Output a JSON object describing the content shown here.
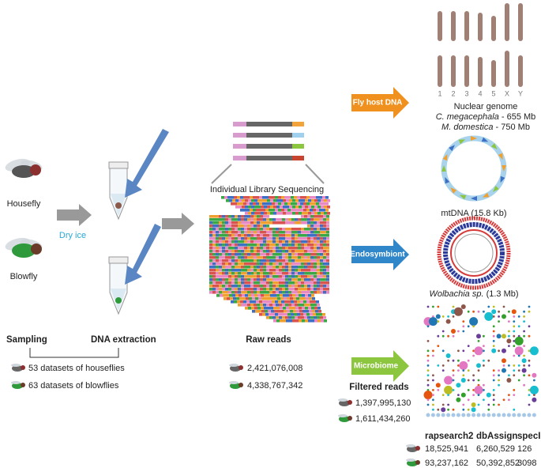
{
  "sampling": {
    "housefly": "Housefly",
    "blowfly": "Blowfly",
    "dry_ice": "Dry ice"
  },
  "sequencing": {
    "title": "Individual Library Sequencing"
  },
  "steps": {
    "sampling": "Sampling",
    "extraction": "DNA extraction",
    "raw_reads": "Raw reads"
  },
  "datasets": {
    "houseflies": "53 datasets of houseflies",
    "blowflies": "63 datasets of blowflies"
  },
  "raw_reads": {
    "housefly": "2,421,076,008",
    "blowfly": "4,338,767,342"
  },
  "arrows": {
    "host": "Fly host DNA",
    "endosymbiont": "Endosymbiont",
    "microbiome": "Microbiome"
  },
  "nuclear": {
    "chromosomes": [
      "1",
      "2",
      "3",
      "4",
      "5",
      "X",
      "Y"
    ],
    "title": "Nuclear genome",
    "species": [
      {
        "name": "C. megacephala",
        "size": " - 655 Mb"
      },
      {
        "name": "M. domestica",
        "size": " - 750 Mb"
      }
    ]
  },
  "mtdna": {
    "label": "mtDNA (15.8 Kb)"
  },
  "wolbachia": {
    "name": "Wolbachia sp.",
    "size": " (1.3 Mb)"
  },
  "filtered": {
    "title": "Filtered reads",
    "housefly": "1,397,995,130",
    "blowfly": "1,611,434,260"
  },
  "classification": {
    "headers": [
      "rapsearch2",
      "dbAssign",
      "specI"
    ],
    "rows": [
      [
        "18,525,941",
        "6,260,529",
        "126"
      ],
      [
        "93,237,162",
        "50,392,852",
        "3098"
      ]
    ]
  }
}
